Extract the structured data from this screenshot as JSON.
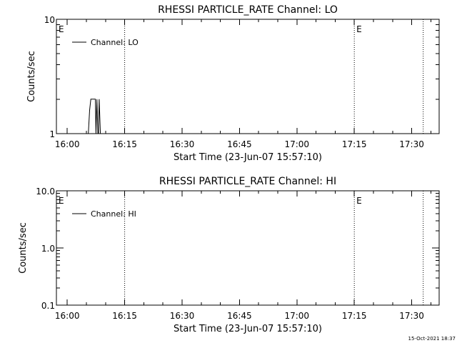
{
  "footer": {
    "timestamp": "15-Oct-2021 18:37"
  },
  "chart_data": [
    {
      "type": "line",
      "title": "RHESSI PARTICLE_RATE Channel: LO",
      "xlabel": "Start Time (23-Jun-07 15:57:10)",
      "ylabel": "Counts/sec",
      "xlim": [
        "15:57:10",
        "17:37:10"
      ],
      "ylim": [
        1,
        10
      ],
      "yscale": "log",
      "xticks": [
        "16:00",
        "16:15",
        "16:30",
        "16:45",
        "17:00",
        "17:15",
        "17:30"
      ],
      "yticks": [
        "1",
        "10"
      ],
      "legend": {
        "placement": "top-left",
        "entries": [
          "Channel: LO"
        ]
      },
      "markers": [
        {
          "label": "E",
          "time": "15:57:10",
          "dotted": false
        },
        {
          "label": "",
          "time": "16:15:00",
          "dotted": true
        },
        {
          "label": "E",
          "time": "17:15:00",
          "dotted": true
        },
        {
          "label": "",
          "time": "17:33:00",
          "dotted": true
        }
      ],
      "series": [
        {
          "name": "Channel: LO",
          "points": [
            [
              "16:05:30",
              1
            ],
            [
              "16:05:50",
              1.6
            ],
            [
              "16:06:10",
              2
            ],
            [
              "16:07:20",
              2
            ],
            [
              "16:07:30",
              1
            ],
            [
              "16:07:45",
              2
            ],
            [
              "16:08:00",
              1
            ],
            [
              "16:08:10",
              1
            ],
            [
              "16:08:20",
              2
            ],
            [
              "16:08:40",
              1
            ]
          ]
        }
      ]
    },
    {
      "type": "line",
      "title": "RHESSI PARTICLE_RATE Channel: HI",
      "xlabel": "Start Time (23-Jun-07 15:57:10)",
      "ylabel": "Counts/sec",
      "xlim": [
        "15:57:10",
        "17:37:10"
      ],
      "ylim": [
        0.1,
        10
      ],
      "yscale": "log",
      "xticks": [
        "16:00",
        "16:15",
        "16:30",
        "16:45",
        "17:00",
        "17:15",
        "17:30"
      ],
      "yticks": [
        "0.1",
        "1.0",
        "10.0"
      ],
      "legend": {
        "placement": "top-left",
        "entries": [
          "Channel: HI"
        ]
      },
      "markers": [
        {
          "label": "E",
          "time": "15:57:10",
          "dotted": false
        },
        {
          "label": "",
          "time": "16:15:00",
          "dotted": true
        },
        {
          "label": "E",
          "time": "17:15:00",
          "dotted": true
        },
        {
          "label": "",
          "time": "17:33:00",
          "dotted": true
        }
      ],
      "series": [
        {
          "name": "Channel: HI",
          "points": []
        }
      ]
    }
  ]
}
